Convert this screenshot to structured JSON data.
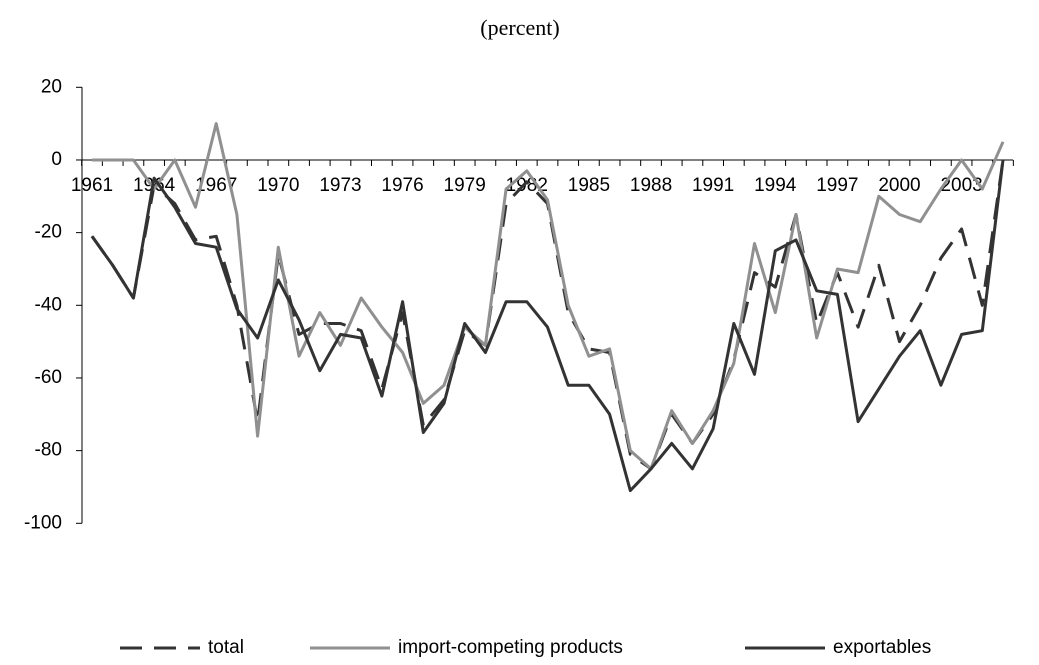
{
  "chart_data": {
    "type": "line",
    "title": "(percent)",
    "categories": [
      "1961",
      null,
      null,
      "1964",
      null,
      null,
      "1967",
      null,
      null,
      "1970",
      null,
      null,
      "1973",
      null,
      null,
      "1976",
      null,
      null,
      "1979",
      null,
      null,
      "1982",
      null,
      null,
      "1985",
      null,
      null,
      "1988",
      null,
      null,
      "1991",
      null,
      null,
      "1994",
      null,
      null,
      "1997",
      null,
      null,
      "2000",
      null,
      null,
      "2003",
      null,
      null
    ],
    "series": [
      {
        "name": "total",
        "color": "#333333",
        "dashed": true,
        "values": [
          -21,
          -29,
          -38,
          -7,
          -12,
          -22,
          -21,
          -40,
          -72,
          -26,
          -48,
          -45,
          -45,
          -47,
          -63,
          -42,
          -73,
          -66,
          -47,
          -51,
          -12,
          -6,
          -12,
          -42,
          -52,
          -53,
          -81,
          -85,
          -70,
          -78,
          -70,
          -55,
          -31,
          -35,
          -15,
          -45,
          -31,
          -46,
          -29,
          -50,
          -40,
          -27,
          -19,
          -40,
          0
        ]
      },
      {
        "name": "import-competing products",
        "color": "#909090",
        "dashed": false,
        "values": [
          0,
          0,
          0,
          -8,
          0,
          -13,
          10,
          -15,
          -76,
          -24,
          -54,
          -42,
          -51,
          -38,
          -46,
          -53,
          -67,
          -62,
          -46,
          -51,
          -8,
          -3,
          -11,
          -40,
          -54,
          -52,
          -80,
          -85,
          -69,
          -78,
          -69,
          -56,
          -23,
          -42,
          -15,
          -49,
          -30,
          -31,
          -10,
          -15,
          -17,
          -8,
          0,
          -8,
          5
        ]
      },
      {
        "name": "exportables",
        "color": "#333333",
        "dashed": false,
        "values": [
          -21,
          -29,
          -38,
          -5,
          -13,
          -23,
          -24,
          -41,
          -49,
          -33,
          -44,
          -58,
          -48,
          -49,
          -65,
          -39,
          -75,
          -67,
          -45,
          -53,
          -39,
          -39,
          -46,
          -62,
          -62,
          -70,
          -91,
          -85,
          -78,
          -85,
          -74,
          -45,
          -59,
          -25,
          -22,
          -36,
          -37,
          -72,
          -63,
          -54,
          -47,
          -62,
          -48,
          -47,
          0
        ]
      }
    ],
    "ylim": [
      -100,
      20
    ],
    "yticks": [
      -100,
      -80,
      -60,
      -40,
      -20,
      0,
      20
    ],
    "grid": false,
    "legend": "bottom"
  }
}
